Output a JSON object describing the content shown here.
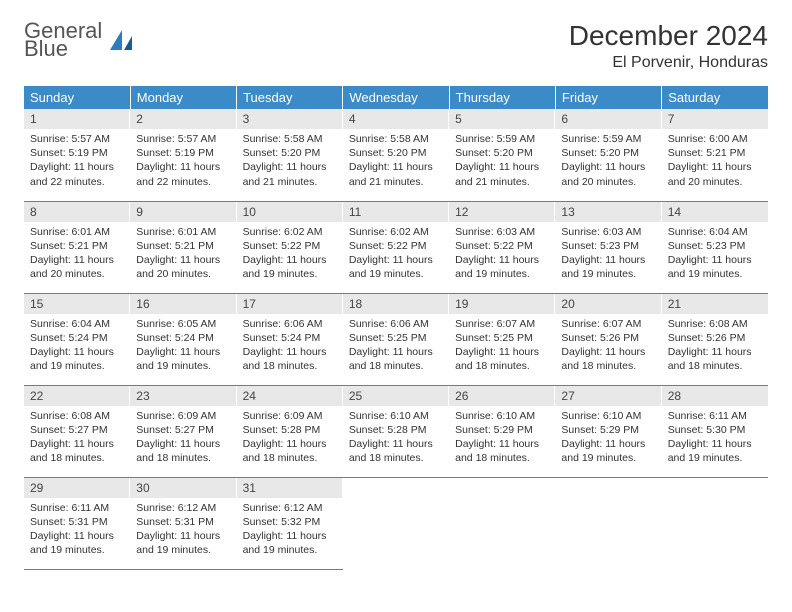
{
  "brand": {
    "word1": "General",
    "word2": "Blue"
  },
  "title": "December 2024",
  "location": "El Porvenir, Honduras",
  "colors": {
    "header_bg": "#3b8bc8",
    "header_text": "#ffffff",
    "daynum_bg": "#e8e8e8",
    "cell_border": "#3b8bc8",
    "brand_gray": "#555555",
    "brand_blue": "#2e7cc0"
  },
  "weekdays": [
    "Sunday",
    "Monday",
    "Tuesday",
    "Wednesday",
    "Thursday",
    "Friday",
    "Saturday"
  ],
  "weeks": [
    [
      {
        "n": "1",
        "sr": "5:57 AM",
        "ss": "5:19 PM",
        "dh": "11",
        "dm": "22"
      },
      {
        "n": "2",
        "sr": "5:57 AM",
        "ss": "5:19 PM",
        "dh": "11",
        "dm": "22"
      },
      {
        "n": "3",
        "sr": "5:58 AM",
        "ss": "5:20 PM",
        "dh": "11",
        "dm": "21"
      },
      {
        "n": "4",
        "sr": "5:58 AM",
        "ss": "5:20 PM",
        "dh": "11",
        "dm": "21"
      },
      {
        "n": "5",
        "sr": "5:59 AM",
        "ss": "5:20 PM",
        "dh": "11",
        "dm": "21"
      },
      {
        "n": "6",
        "sr": "5:59 AM",
        "ss": "5:20 PM",
        "dh": "11",
        "dm": "20"
      },
      {
        "n": "7",
        "sr": "6:00 AM",
        "ss": "5:21 PM",
        "dh": "11",
        "dm": "20"
      }
    ],
    [
      {
        "n": "8",
        "sr": "6:01 AM",
        "ss": "5:21 PM",
        "dh": "11",
        "dm": "20"
      },
      {
        "n": "9",
        "sr": "6:01 AM",
        "ss": "5:21 PM",
        "dh": "11",
        "dm": "20"
      },
      {
        "n": "10",
        "sr": "6:02 AM",
        "ss": "5:22 PM",
        "dh": "11",
        "dm": "19"
      },
      {
        "n": "11",
        "sr": "6:02 AM",
        "ss": "5:22 PM",
        "dh": "11",
        "dm": "19"
      },
      {
        "n": "12",
        "sr": "6:03 AM",
        "ss": "5:22 PM",
        "dh": "11",
        "dm": "19"
      },
      {
        "n": "13",
        "sr": "6:03 AM",
        "ss": "5:23 PM",
        "dh": "11",
        "dm": "19"
      },
      {
        "n": "14",
        "sr": "6:04 AM",
        "ss": "5:23 PM",
        "dh": "11",
        "dm": "19"
      }
    ],
    [
      {
        "n": "15",
        "sr": "6:04 AM",
        "ss": "5:24 PM",
        "dh": "11",
        "dm": "19"
      },
      {
        "n": "16",
        "sr": "6:05 AM",
        "ss": "5:24 PM",
        "dh": "11",
        "dm": "19"
      },
      {
        "n": "17",
        "sr": "6:06 AM",
        "ss": "5:24 PM",
        "dh": "11",
        "dm": "18"
      },
      {
        "n": "18",
        "sr": "6:06 AM",
        "ss": "5:25 PM",
        "dh": "11",
        "dm": "18"
      },
      {
        "n": "19",
        "sr": "6:07 AM",
        "ss": "5:25 PM",
        "dh": "11",
        "dm": "18"
      },
      {
        "n": "20",
        "sr": "6:07 AM",
        "ss": "5:26 PM",
        "dh": "11",
        "dm": "18"
      },
      {
        "n": "21",
        "sr": "6:08 AM",
        "ss": "5:26 PM",
        "dh": "11",
        "dm": "18"
      }
    ],
    [
      {
        "n": "22",
        "sr": "6:08 AM",
        "ss": "5:27 PM",
        "dh": "11",
        "dm": "18"
      },
      {
        "n": "23",
        "sr": "6:09 AM",
        "ss": "5:27 PM",
        "dh": "11",
        "dm": "18"
      },
      {
        "n": "24",
        "sr": "6:09 AM",
        "ss": "5:28 PM",
        "dh": "11",
        "dm": "18"
      },
      {
        "n": "25",
        "sr": "6:10 AM",
        "ss": "5:28 PM",
        "dh": "11",
        "dm": "18"
      },
      {
        "n": "26",
        "sr": "6:10 AM",
        "ss": "5:29 PM",
        "dh": "11",
        "dm": "18"
      },
      {
        "n": "27",
        "sr": "6:10 AM",
        "ss": "5:29 PM",
        "dh": "11",
        "dm": "19"
      },
      {
        "n": "28",
        "sr": "6:11 AM",
        "ss": "5:30 PM",
        "dh": "11",
        "dm": "19"
      }
    ],
    [
      {
        "n": "29",
        "sr": "6:11 AM",
        "ss": "5:31 PM",
        "dh": "11",
        "dm": "19"
      },
      {
        "n": "30",
        "sr": "6:12 AM",
        "ss": "5:31 PM",
        "dh": "11",
        "dm": "19"
      },
      {
        "n": "31",
        "sr": "6:12 AM",
        "ss": "5:32 PM",
        "dh": "11",
        "dm": "19"
      },
      null,
      null,
      null,
      null
    ]
  ]
}
